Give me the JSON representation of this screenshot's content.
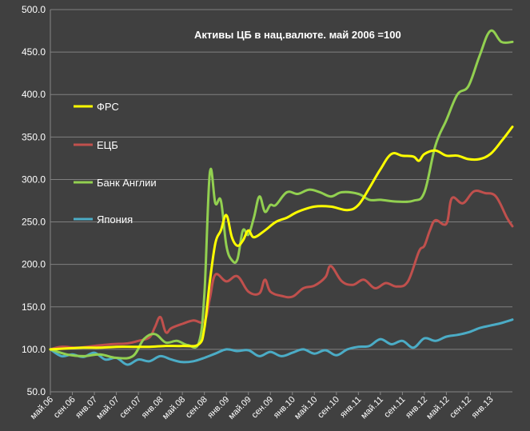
{
  "chart_data": {
    "type": "line",
    "title": "Активы ЦБ в нац.валюте. май 2006 =100",
    "xlabel": "",
    "ylabel": "",
    "ylim": [
      50,
      500
    ],
    "y_ticks": [
      "50.0",
      "100.0",
      "150.0",
      "200.0",
      "250.0",
      "300.0",
      "350.0",
      "400.0",
      "450.0",
      "500.0"
    ],
    "x_start": "2006-05",
    "x_end": "2013-05",
    "x_ticks": [
      {
        "label": "май.06",
        "date": "2006-05"
      },
      {
        "label": "сен.06",
        "date": "2006-09"
      },
      {
        "label": "янв.07",
        "date": "2007-01"
      },
      {
        "label": "май.07",
        "date": "2007-05"
      },
      {
        "label": "сен.07",
        "date": "2007-09"
      },
      {
        "label": "янв.08",
        "date": "2008-01"
      },
      {
        "label": "май.08",
        "date": "2008-05"
      },
      {
        "label": "сен.08",
        "date": "2008-09"
      },
      {
        "label": "янв.09",
        "date": "2009-01"
      },
      {
        "label": "май.09",
        "date": "2009-05"
      },
      {
        "label": "сен.09",
        "date": "2009-09"
      },
      {
        "label": "янв.10",
        "date": "2010-01"
      },
      {
        "label": "май.10",
        "date": "2010-05"
      },
      {
        "label": "сен.10",
        "date": "2010-09"
      },
      {
        "label": "янв.11",
        "date": "2011-01"
      },
      {
        "label": "май.11",
        "date": "2011-05"
      },
      {
        "label": "сен.11",
        "date": "2011-09"
      },
      {
        "label": "янв.12",
        "date": "2012-01"
      },
      {
        "label": "май.12",
        "date": "2012-05"
      },
      {
        "label": "сен.12",
        "date": "2012-09"
      },
      {
        "label": "янв.13",
        "date": "2013-01"
      }
    ],
    "grid": true,
    "legend_position": "left",
    "series": [
      {
        "name": "ФРС",
        "color": "#ffff00",
        "x": [
          "2006-05",
          "2006-08",
          "2006-11",
          "2007-02",
          "2007-05",
          "2007-08",
          "2007-11",
          "2008-02",
          "2008-05",
          "2008-08",
          "2008-09",
          "2008-10",
          "2008-11",
          "2008-12",
          "2009-01",
          "2009-02",
          "2009-03",
          "2009-04",
          "2009-05",
          "2009-06",
          "2009-08",
          "2009-10",
          "2009-12",
          "2010-02",
          "2010-05",
          "2010-08",
          "2010-11",
          "2011-01",
          "2011-03",
          "2011-05",
          "2011-07",
          "2011-09",
          "2011-11",
          "2011-12",
          "2012-01",
          "2012-03",
          "2012-05",
          "2012-07",
          "2012-09",
          "2012-11",
          "2013-01",
          "2013-03",
          "2013-05"
        ],
        "values": [
          100,
          101,
          102,
          102,
          103,
          103,
          103,
          104,
          104,
          106,
          125,
          180,
          225,
          240,
          258,
          232,
          222,
          228,
          240,
          232,
          240,
          250,
          255,
          262,
          268,
          268,
          264,
          270,
          290,
          312,
          330,
          328,
          327,
          322,
          330,
          334,
          328,
          328,
          324,
          324,
          330,
          345,
          362
        ]
      },
      {
        "name": "ЕЦБ",
        "color": "#c0504d",
        "x": [
          "2006-05",
          "2006-07",
          "2006-10",
          "2007-01",
          "2007-04",
          "2007-07",
          "2007-09",
          "2007-11",
          "2007-12",
          "2008-01",
          "2008-02",
          "2008-03",
          "2008-05",
          "2008-07",
          "2008-09",
          "2008-10",
          "2008-11",
          "2009-01",
          "2009-03",
          "2009-05",
          "2009-07",
          "2009-08",
          "2009-09",
          "2009-11",
          "2010-01",
          "2010-03",
          "2010-05",
          "2010-07",
          "2010-08",
          "2010-10",
          "2010-12",
          "2011-02",
          "2011-04",
          "2011-06",
          "2011-08",
          "2011-10",
          "2011-12",
          "2012-01",
          "2012-02",
          "2012-03",
          "2012-05",
          "2012-06",
          "2012-08",
          "2012-10",
          "2012-12",
          "2013-02",
          "2013-04",
          "2013-05"
        ],
        "values": [
          100,
          103,
          102,
          104,
          106,
          107,
          110,
          114,
          126,
          138,
          120,
          125,
          130,
          134,
          133,
          160,
          188,
          180,
          186,
          168,
          166,
          182,
          168,
          163,
          162,
          172,
          175,
          185,
          198,
          180,
          176,
          182,
          172,
          178,
          174,
          180,
          215,
          222,
          240,
          252,
          248,
          278,
          272,
          286,
          284,
          280,
          255,
          245
        ]
      },
      {
        "name": "Банк Англии",
        "color": "#92d050",
        "x": [
          "2006-05",
          "2006-08",
          "2006-11",
          "2007-02",
          "2007-05",
          "2007-08",
          "2007-10",
          "2007-12",
          "2008-02",
          "2008-04",
          "2008-06",
          "2008-08",
          "2008-09",
          "2008-10",
          "2008-11",
          "2008-12",
          "2009-01",
          "2009-02",
          "2009-03",
          "2009-04",
          "2009-05",
          "2009-06",
          "2009-07",
          "2009-08",
          "2009-09",
          "2009-10",
          "2009-12",
          "2010-02",
          "2010-04",
          "2010-06",
          "2010-08",
          "2010-10",
          "2011-01",
          "2011-03",
          "2011-05",
          "2011-08",
          "2011-11",
          "2012-01",
          "2012-03",
          "2012-05",
          "2012-07",
          "2012-09",
          "2012-11",
          "2013-01",
          "2013-03",
          "2013-05"
        ],
        "values": [
          100,
          94,
          92,
          94,
          90,
          92,
          112,
          118,
          108,
          110,
          105,
          108,
          165,
          308,
          272,
          275,
          222,
          205,
          206,
          240,
          235,
          255,
          280,
          262,
          270,
          270,
          285,
          283,
          288,
          285,
          280,
          285,
          283,
          276,
          276,
          274,
          275,
          285,
          340,
          370,
          400,
          410,
          445,
          475,
          462,
          462
        ]
      },
      {
        "name": "Япония",
        "color": "#4bacc6",
        "x": [
          "2006-05",
          "2006-07",
          "2006-09",
          "2006-11",
          "2007-01",
          "2007-03",
          "2007-05",
          "2007-07",
          "2007-09",
          "2007-11",
          "2008-01",
          "2008-03",
          "2008-05",
          "2008-07",
          "2008-09",
          "2008-11",
          "2009-01",
          "2009-03",
          "2009-05",
          "2009-07",
          "2009-09",
          "2009-11",
          "2010-01",
          "2010-03",
          "2010-05",
          "2010-07",
          "2010-09",
          "2010-11",
          "2011-01",
          "2011-03",
          "2011-05",
          "2011-07",
          "2011-09",
          "2011-11",
          "2012-01",
          "2012-03",
          "2012-05",
          "2012-07",
          "2012-09",
          "2012-11",
          "2013-01",
          "2013-03",
          "2013-05"
        ],
        "values": [
          100,
          92,
          94,
          91,
          96,
          88,
          90,
          82,
          88,
          86,
          92,
          88,
          85,
          86,
          90,
          95,
          100,
          98,
          99,
          92,
          97,
          92,
          96,
          100,
          95,
          99,
          93,
          100,
          103,
          104,
          112,
          106,
          110,
          102,
          113,
          110,
          115,
          117,
          120,
          125,
          128,
          131,
          135
        ]
      }
    ]
  }
}
